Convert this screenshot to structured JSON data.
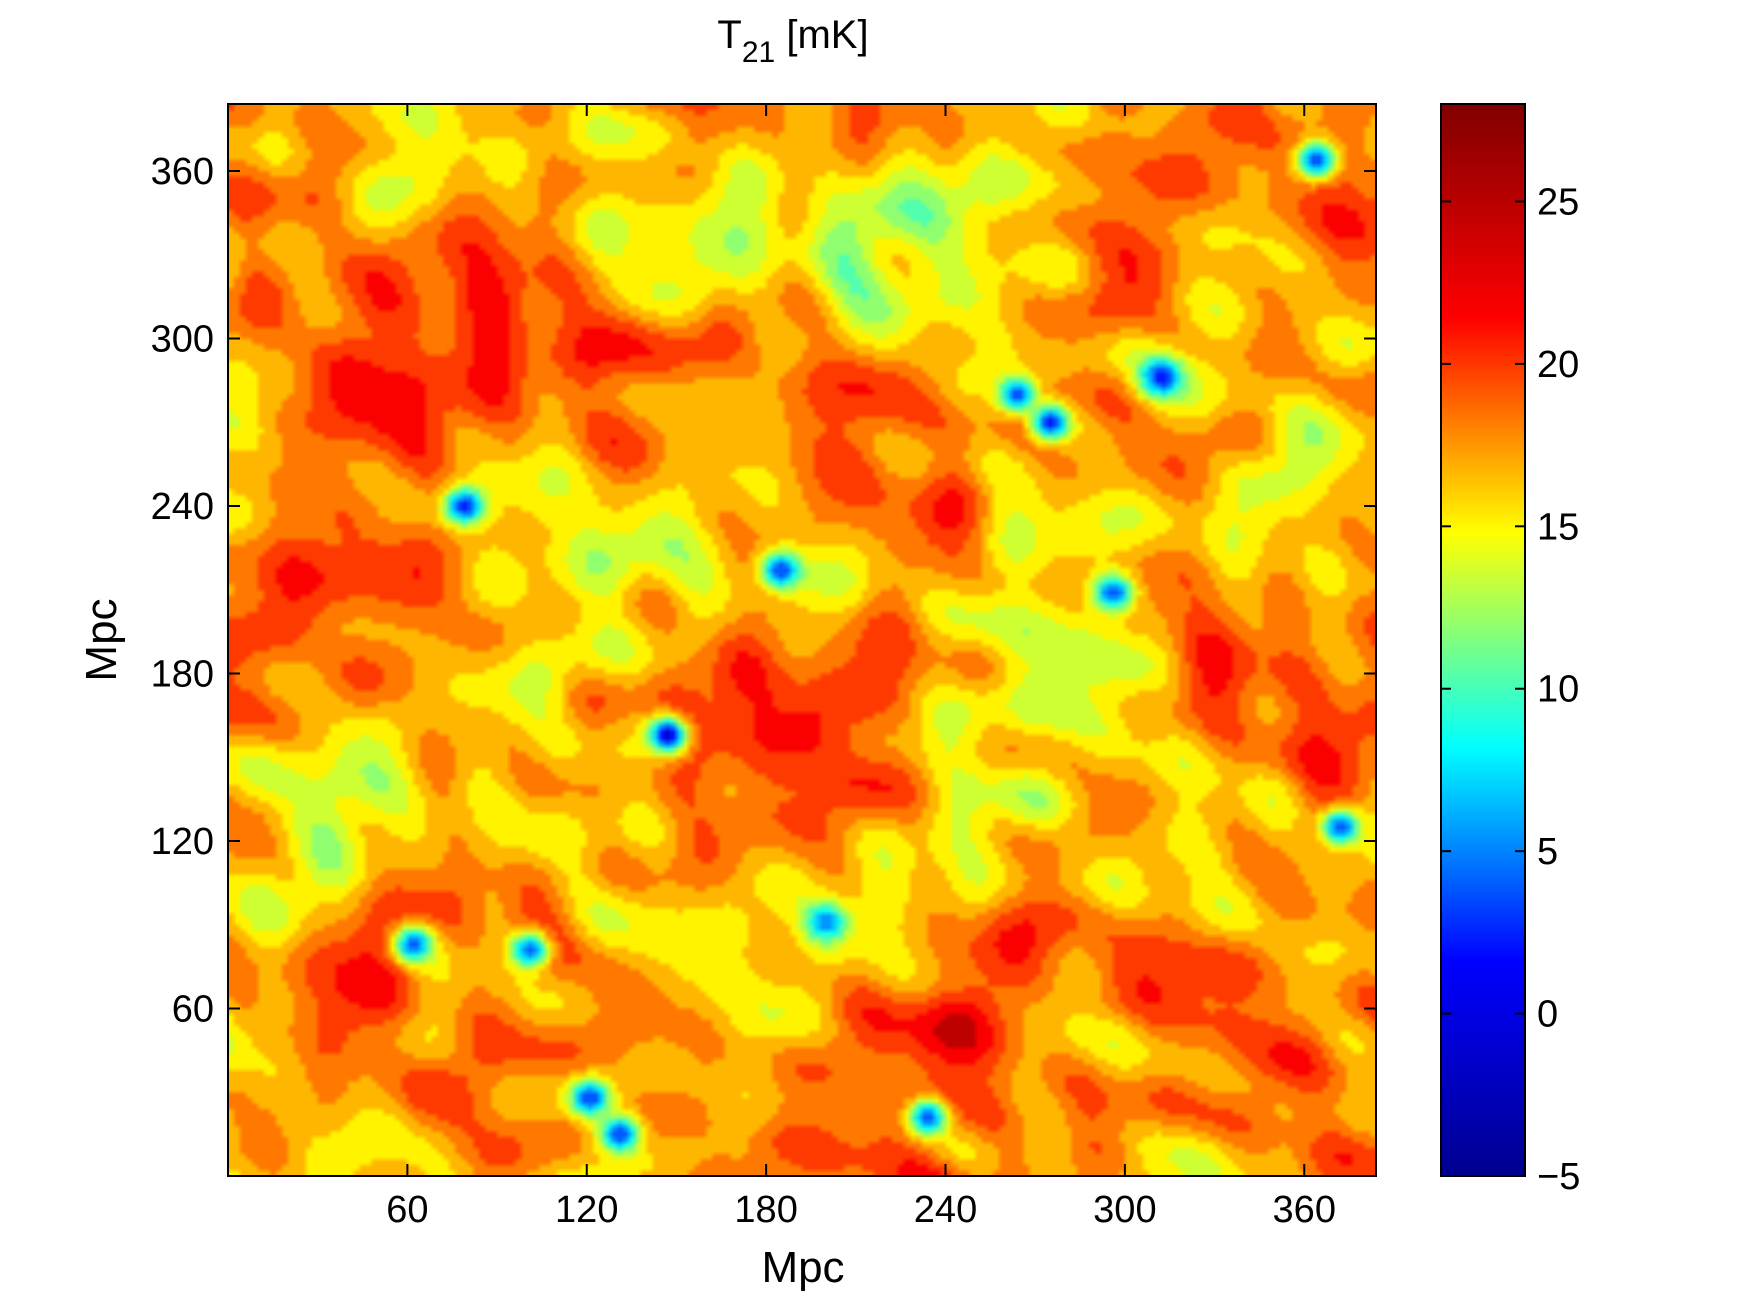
{
  "chart_data": {
    "type": "heatmap",
    "title": "T",
    "title_subscript": "21",
    "title_suffix": " [mK]",
    "xlabel": "Mpc",
    "ylabel": "Mpc",
    "xlim": [
      0,
      384
    ],
    "ylim": [
      0,
      384
    ],
    "xticks": [
      60,
      120,
      180,
      240,
      300,
      360
    ],
    "yticks": [
      60,
      120,
      180,
      240,
      300,
      360
    ],
    "xtick_labels": [
      "60",
      "120",
      "180",
      "240",
      "300",
      "360"
    ],
    "ytick_labels": [
      "60",
      "120",
      "180",
      "240",
      "300",
      "360"
    ],
    "colorbar": {
      "range": [
        -5,
        28
      ],
      "ticks": [
        -5,
        0,
        5,
        10,
        15,
        20,
        25
      ],
      "tick_labels": [
        "−5",
        "0",
        "5",
        "10",
        "15",
        "20",
        "25"
      ],
      "colormap": "jet",
      "colors": [
        "#00008f",
        "#0000ff",
        "#00ffff",
        "#ffff00",
        "#ff0000",
        "#800000"
      ]
    },
    "field": {
      "typical_range": [
        12,
        25
      ],
      "minimum_features": [
        {
          "x": 146,
          "y": 157,
          "value": -2
        },
        {
          "x": 78,
          "y": 239,
          "value": 0
        },
        {
          "x": 274,
          "y": 269,
          "value": 0
        },
        {
          "x": 263,
          "y": 279,
          "value": 1
        },
        {
          "x": 311,
          "y": 285,
          "value": 0
        },
        {
          "x": 363,
          "y": 363,
          "value": 1
        },
        {
          "x": 295,
          "y": 208,
          "value": 1
        },
        {
          "x": 184,
          "y": 216,
          "value": 1
        },
        {
          "x": 130,
          "y": 14,
          "value": 1
        },
        {
          "x": 120,
          "y": 27,
          "value": 1
        },
        {
          "x": 371,
          "y": 124,
          "value": 1
        },
        {
          "x": 100,
          "y": 80,
          "value": 2
        },
        {
          "x": 61,
          "y": 82,
          "value": 2
        },
        {
          "x": 199,
          "y": 90,
          "value": 3
        },
        {
          "x": 233,
          "y": 20,
          "value": 2
        }
      ],
      "high_regions": [
        {
          "x": 95,
          "y": 300,
          "value": 25
        },
        {
          "x": 225,
          "y": 30,
          "value": 25
        },
        {
          "x": 300,
          "y": 90,
          "value": 24
        },
        {
          "x": 340,
          "y": 40,
          "value": 25
        },
        {
          "x": 360,
          "y": 180,
          "value": 24
        },
        {
          "x": 20,
          "y": 270,
          "value": 24
        },
        {
          "x": 40,
          "y": 110,
          "value": 24
        },
        {
          "x": 190,
          "y": 160,
          "value": 24
        }
      ],
      "low_regions": [
        {
          "x": 210,
          "y": 330,
          "value": 12
        },
        {
          "x": 25,
          "y": 100,
          "value": 11
        },
        {
          "x": 340,
          "y": 90,
          "value": 11
        },
        {
          "x": 250,
          "y": 110,
          "value": 12
        },
        {
          "x": 100,
          "y": 160,
          "value": 12
        },
        {
          "x": 150,
          "y": 350,
          "value": 12
        },
        {
          "x": 250,
          "y": 180,
          "value": 12
        },
        {
          "x": 340,
          "y": 230,
          "value": 12
        }
      ]
    }
  }
}
